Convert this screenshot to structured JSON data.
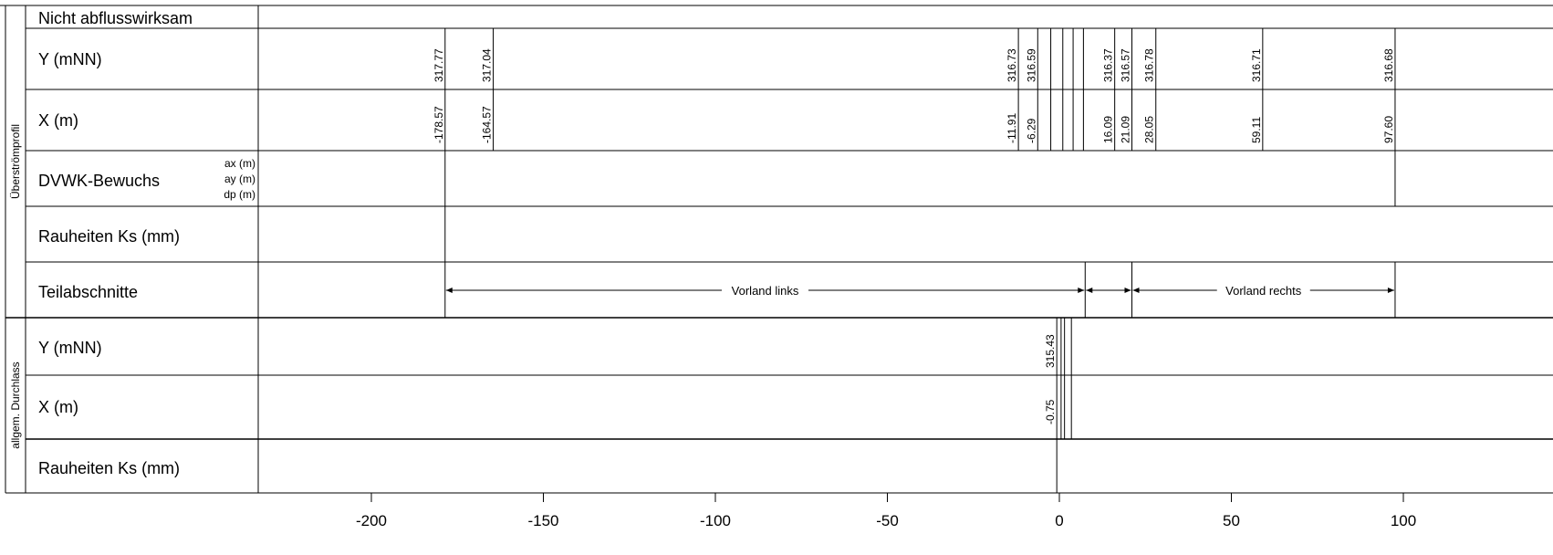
{
  "sections": [
    {
      "title": "Überströmprofil"
    },
    {
      "title": "allgem. Durchlass"
    }
  ],
  "rows": {
    "nicht": "Nicht abflusswirksam",
    "y1": "Y (mNN)",
    "x1": "X (m)",
    "dvwk": "DVWK-Bewuchs",
    "dvwk_units": [
      "ax (m)",
      "ay (m)",
      "dp (m)"
    ],
    "ks1": "Rauheiten Ks (mm)",
    "teil": "Teilabschnitte",
    "y2": "Y (mNN)",
    "x2": "X (m)",
    "ks2": "Rauheiten Ks (mm)"
  },
  "profile_points": [
    {
      "x": -178.57,
      "y": 317.77,
      "x_label": "-178.57",
      "y_label": "317.77"
    },
    {
      "x": -164.57,
      "y": 317.04,
      "x_label": "-164.57",
      "y_label": "317.04"
    },
    {
      "x": -11.91,
      "y": 316.73,
      "x_label": "-11.91",
      "y_label": "316.73"
    },
    {
      "x": -6.29,
      "y": 316.59,
      "x_label": "-6.29",
      "y_label": "316.59"
    },
    {
      "x": 16.09,
      "y": 316.37,
      "x_label": "16.09",
      "y_label": "316.37"
    },
    {
      "x": 21.09,
      "y": 316.57,
      "x_label": "21.09",
      "y_label": "316.57"
    },
    {
      "x": 28.05,
      "y": 316.78,
      "x_label": "28.05",
      "y_label": "316.78"
    },
    {
      "x": 59.11,
      "y": 316.71,
      "x_label": "59.11",
      "y_label": "316.71"
    },
    {
      "x": 97.6,
      "y": 316.68,
      "x_label": "97.60",
      "y_label": "316.68"
    }
  ],
  "profile_extra_lines": [
    -2.5,
    1.0,
    4.0,
    7.0
  ],
  "dvwk_lines": [
    -178.57,
    97.6
  ],
  "ks_lines": [
    -178.57
  ],
  "teil_boundaries": [
    -178.57,
    7.5,
    21.09,
    97.6
  ],
  "teil_zones": [
    {
      "from": -178.57,
      "to": 7.5,
      "label": "Vorland links"
    },
    {
      "from": 7.5,
      "to": 21.09,
      "label": ""
    },
    {
      "from": 21.09,
      "to": 97.6,
      "label": "Vorland rechts"
    }
  ],
  "durchlass_point": {
    "x": -0.75,
    "y": 315.43,
    "x_label": "-0.75",
    "y_label": "315.43"
  },
  "durchlass_extra_lines": [
    0.5,
    1.5,
    3.5
  ],
  "ks2_lines": [
    -0.75
  ],
  "axis": {
    "ticks": [
      -200,
      -150,
      -100,
      -50,
      0,
      50,
      100
    ],
    "tick_labels": [
      "-200",
      "-150",
      "-100",
      "-50",
      "0",
      "50",
      "100"
    ],
    "range": [
      -260,
      150
    ]
  }
}
